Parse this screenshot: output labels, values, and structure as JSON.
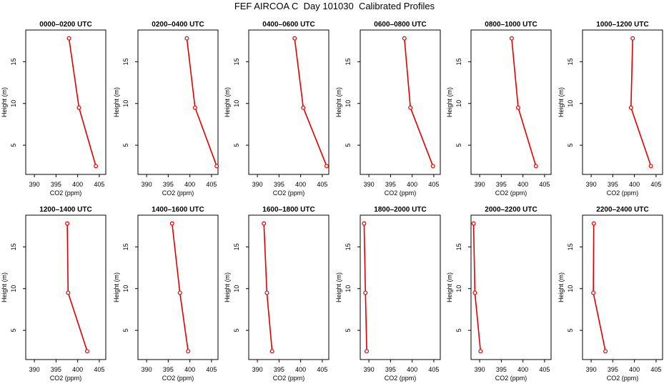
{
  "title": "FEF AIRCOA C  Day 101030  Calibrated Profiles",
  "chart_data": [
    {
      "type": "line",
      "title": "0000–0200 UTC",
      "xlabel": "CO2 (ppm)",
      "ylabel": "Height (m)",
      "xlim": [
        388,
        406.5
      ],
      "ylim": [
        1.5,
        18.8
      ],
      "xticks": [
        390,
        395,
        400,
        405
      ],
      "yticks": [
        5,
        10,
        15
      ],
      "series": [
        {
          "x": [
            398.0,
            400.3,
            404.2
          ],
          "y": [
            17.8,
            9.5,
            2.5
          ]
        }
      ]
    },
    {
      "type": "line",
      "title": "0200–0400 UTC",
      "xlabel": "CO2 (ppm)",
      "ylabel": "Height (m)",
      "xlim": [
        388,
        406.5
      ],
      "ylim": [
        1.5,
        18.8
      ],
      "xticks": [
        390,
        395,
        400,
        405
      ],
      "yticks": [
        5,
        10,
        15
      ],
      "series": [
        {
          "x": [
            399.3,
            401.2,
            406.2
          ],
          "y": [
            17.8,
            9.5,
            2.5
          ]
        }
      ]
    },
    {
      "type": "line",
      "title": "0400–0600 UTC",
      "xlabel": "CO2 (ppm)",
      "ylabel": "Height (m)",
      "xlim": [
        388,
        406.5
      ],
      "ylim": [
        1.5,
        18.8
      ],
      "xticks": [
        390,
        395,
        400,
        405
      ],
      "yticks": [
        5,
        10,
        15
      ],
      "series": [
        {
          "x": [
            398.6,
            400.6,
            406.0
          ],
          "y": [
            17.8,
            9.5,
            2.5
          ]
        }
      ]
    },
    {
      "type": "line",
      "title": "0600–0800 UTC",
      "xlabel": "CO2 (ppm)",
      "ylabel": "Height (m)",
      "xlim": [
        388,
        406.5
      ],
      "ylim": [
        1.5,
        18.8
      ],
      "xticks": [
        390,
        395,
        400,
        405
      ],
      "yticks": [
        5,
        10,
        15
      ],
      "series": [
        {
          "x": [
            398.2,
            399.6,
            404.8
          ],
          "y": [
            17.8,
            9.5,
            2.5
          ]
        }
      ]
    },
    {
      "type": "line",
      "title": "0800–1000 UTC",
      "xlabel": "CO2 (ppm)",
      "ylabel": "Height (m)",
      "xlim": [
        388,
        406.5
      ],
      "ylim": [
        1.5,
        18.8
      ],
      "xticks": [
        390,
        395,
        400,
        405
      ],
      "yticks": [
        5,
        10,
        15
      ],
      "series": [
        {
          "x": [
            397.4,
            398.9,
            403.0
          ],
          "y": [
            17.8,
            9.5,
            2.5
          ]
        }
      ]
    },
    {
      "type": "line",
      "title": "1000–1200 UTC",
      "xlabel": "CO2 (ppm)",
      "ylabel": "Height (m)",
      "xlim": [
        388,
        406.5
      ],
      "ylim": [
        1.5,
        18.8
      ],
      "xticks": [
        390,
        395,
        400,
        405
      ],
      "yticks": [
        5,
        10,
        15
      ],
      "series": [
        {
          "x": [
            399.6,
            399.2,
            403.8
          ],
          "y": [
            17.8,
            9.5,
            2.5
          ]
        }
      ]
    },
    {
      "type": "line",
      "title": "1200–1400 UTC",
      "xlabel": "CO2 (ppm)",
      "ylabel": "Height (m)",
      "xlim": [
        388,
        406.5
      ],
      "ylim": [
        1.5,
        18.8
      ],
      "xticks": [
        390,
        395,
        400,
        405
      ],
      "yticks": [
        5,
        10,
        15
      ],
      "series": [
        {
          "x": [
            397.6,
            397.8,
            402.2
          ],
          "y": [
            17.8,
            9.5,
            2.5
          ]
        }
      ]
    },
    {
      "type": "line",
      "title": "1400–1600 UTC",
      "xlabel": "CO2 (ppm)",
      "ylabel": "Height (m)",
      "xlim": [
        388,
        406.5
      ],
      "ylim": [
        1.5,
        18.8
      ],
      "xticks": [
        390,
        395,
        400,
        405
      ],
      "yticks": [
        5,
        10,
        15
      ],
      "series": [
        {
          "x": [
            395.9,
            397.7,
            399.6
          ],
          "y": [
            17.8,
            9.5,
            2.5
          ]
        }
      ]
    },
    {
      "type": "line",
      "title": "1600–1800 UTC",
      "xlabel": "CO2 (ppm)",
      "ylabel": "Height (m)",
      "xlim": [
        388,
        406.5
      ],
      "ylim": [
        1.5,
        18.8
      ],
      "xticks": [
        390,
        395,
        400,
        405
      ],
      "yticks": [
        5,
        10,
        15
      ],
      "series": [
        {
          "x": [
            391.5,
            392.2,
            393.4
          ],
          "y": [
            17.8,
            9.5,
            2.5
          ]
        }
      ]
    },
    {
      "type": "line",
      "title": "1800–2000 UTC",
      "xlabel": "CO2 (ppm)",
      "ylabel": "Height (m)",
      "xlim": [
        388,
        406.5
      ],
      "ylim": [
        1.5,
        18.8
      ],
      "xticks": [
        390,
        395,
        400,
        405
      ],
      "yticks": [
        5,
        10,
        15
      ],
      "series": [
        {
          "x": [
            388.9,
            389.2,
            389.5
          ],
          "y": [
            17.8,
            9.5,
            2.5
          ]
        }
      ]
    },
    {
      "type": "line",
      "title": "2000–2200 UTC",
      "xlabel": "CO2 (ppm)",
      "ylabel": "Height (m)",
      "xlim": [
        388,
        406.5
      ],
      "ylim": [
        1.5,
        18.8
      ],
      "xticks": [
        390,
        395,
        400,
        405
      ],
      "yticks": [
        5,
        10,
        15
      ],
      "series": [
        {
          "x": [
            388.6,
            388.9,
            390.2
          ],
          "y": [
            17.8,
            9.5,
            2.5
          ]
        }
      ]
    },
    {
      "type": "line",
      "title": "2200–2400 UTC",
      "xlabel": "CO2 (ppm)",
      "ylabel": "Height (m)",
      "xlim": [
        388,
        406.5
      ],
      "ylim": [
        1.5,
        18.8
      ],
      "xticks": [
        390,
        395,
        400,
        405
      ],
      "yticks": [
        5,
        10,
        15
      ],
      "series": [
        {
          "x": [
            390.6,
            390.5,
            393.3
          ],
          "y": [
            17.8,
            9.5,
            2.5
          ]
        }
      ]
    }
  ]
}
